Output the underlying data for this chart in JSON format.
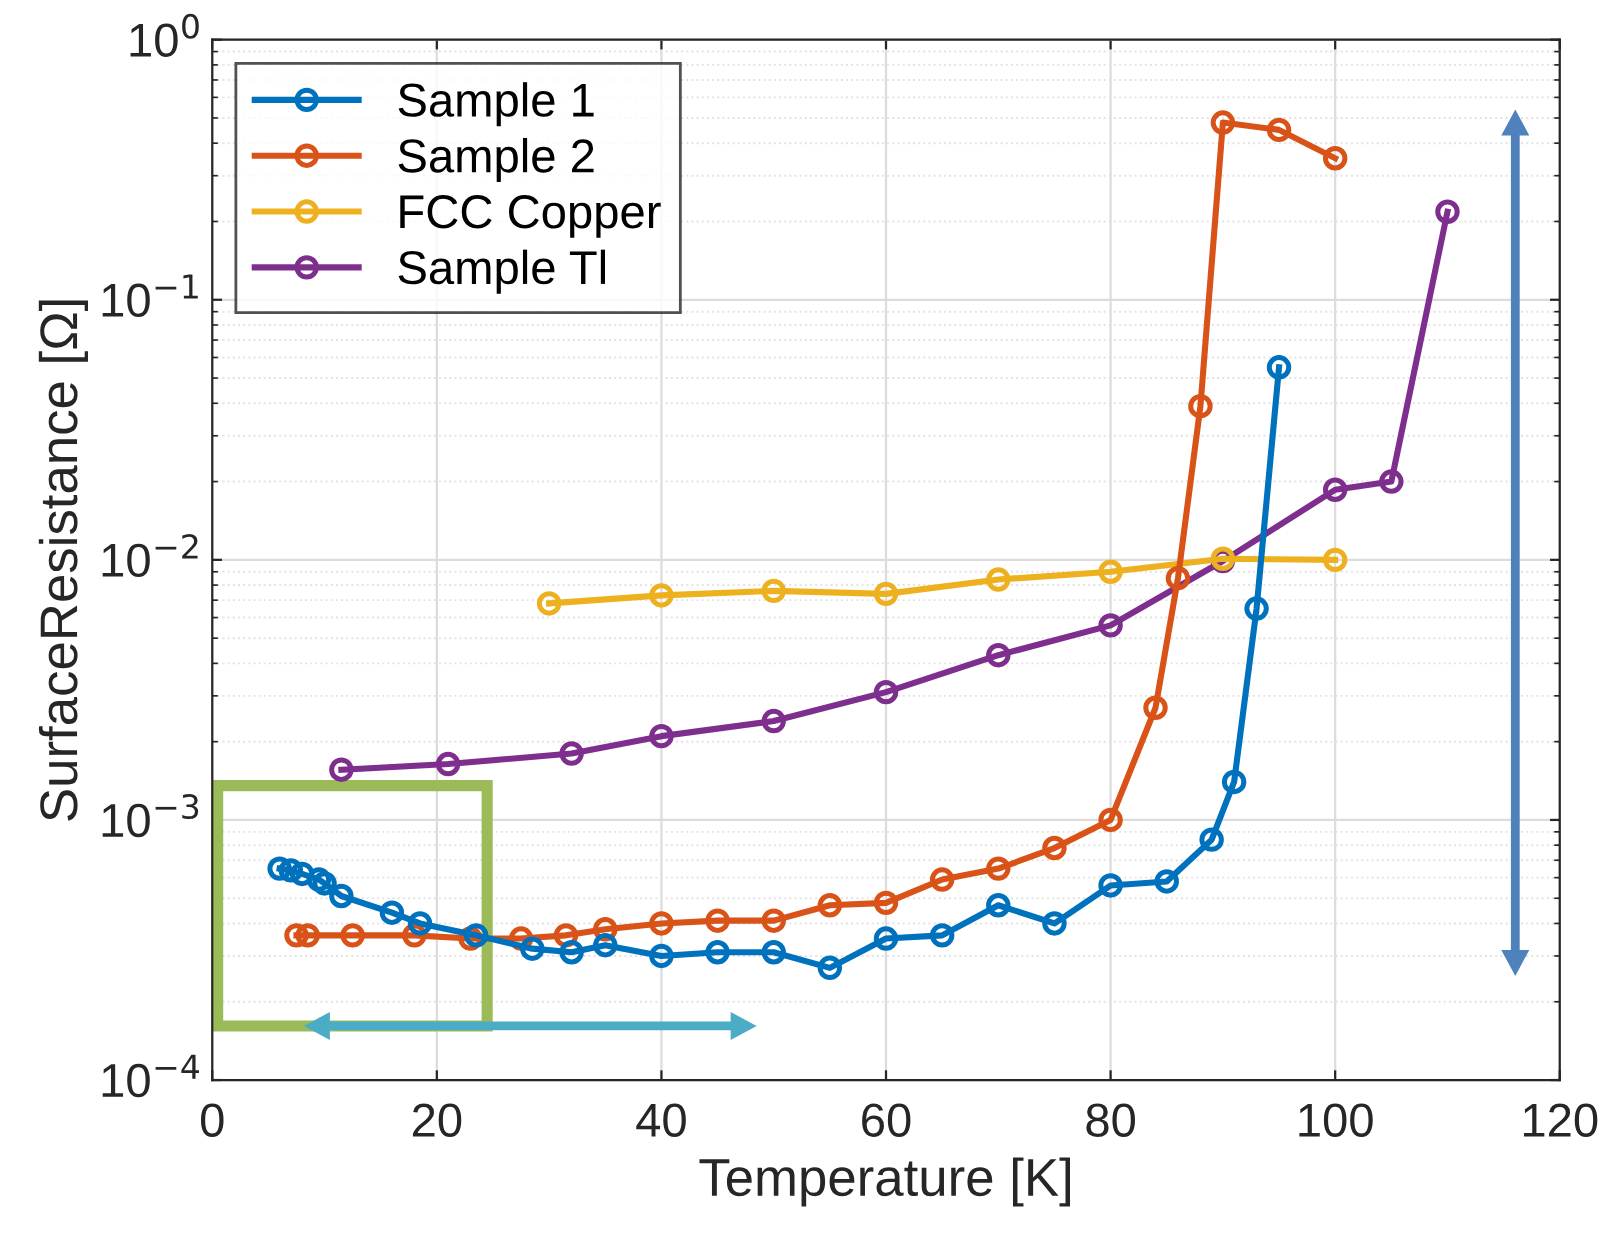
{
  "chart_data": {
    "type": "line",
    "xlabel": "Temperature [K]",
    "ylabel": "SurfaceResistance [Ω]",
    "log": "y",
    "xlim": [
      0,
      120
    ],
    "xticks": [
      0,
      20,
      40,
      60,
      80,
      100,
      120
    ],
    "ylim": [
      0.0001,
      1
    ],
    "yticks": [
      {
        "value": 0.0001,
        "label": "10$^{−4}$"
      },
      {
        "value": 0.001,
        "label": "10$^{−3}$"
      },
      {
        "value": 0.01,
        "label": "10$^{−2}$"
      },
      {
        "value": 0.1,
        "label": "10$^{−1}$"
      },
      {
        "value": 1,
        "label": "10$^{0}$"
      }
    ],
    "grid": true,
    "legend": "top left",
    "marker": "circle",
    "line_style": "solid",
    "series": [
      {
        "name": "Sample 1",
        "color": "#0072bd",
        "x": [
          6,
          7,
          8,
          9.5,
          10,
          11.5,
          16,
          18.5,
          23.5,
          28.5,
          32,
          35,
          40,
          45,
          50,
          55,
          60,
          65,
          70,
          75,
          80,
          85,
          89,
          91,
          93,
          95
        ],
        "values": [
          0.00065,
          0.00064,
          0.00062,
          0.00059,
          0.00057,
          0.00051,
          0.00044,
          0.0004,
          0.00036,
          0.00032,
          0.00031,
          0.00033,
          0.0003,
          0.00031,
          0.00031,
          0.00027,
          0.00035,
          0.00036,
          0.00047,
          0.0004,
          0.00056,
          0.00058,
          0.00084,
          0.0014,
          0.0065,
          0.055
        ]
      },
      {
        "name": "Sample 2",
        "color": "#d95319",
        "x": [
          7.5,
          8.5,
          12.5,
          18,
          23,
          27.5,
          31.5,
          35,
          40,
          45,
          50,
          55,
          60,
          65,
          70,
          75,
          80,
          84,
          86,
          88,
          90,
          95,
          100
        ],
        "values": [
          0.00036,
          0.00036,
          0.00036,
          0.00036,
          0.00035,
          0.00035,
          0.00036,
          0.00038,
          0.0004,
          0.00041,
          0.00041,
          0.00047,
          0.00048,
          0.00059,
          0.00065,
          0.00078,
          0.001,
          0.0027,
          0.0085,
          0.039,
          0.48,
          0.45,
          0.35
        ]
      },
      {
        "name": "FCC Copper",
        "color": "#edb120",
        "x": [
          30,
          40,
          50,
          60,
          70,
          80,
          90,
          100
        ],
        "values": [
          0.0068,
          0.0073,
          0.0076,
          0.0074,
          0.0084,
          0.009,
          0.0101,
          0.01
        ]
      },
      {
        "name": "Sample Tl",
        "color": "#7e2f8e",
        "x": [
          11.5,
          21,
          32,
          40,
          50,
          60,
          70,
          80,
          90,
          100,
          105,
          110
        ],
        "values": [
          0.00156,
          0.00164,
          0.0018,
          0.0021,
          0.0024,
          0.0031,
          0.0043,
          0.0056,
          0.0099,
          0.0186,
          0.02,
          0.218
        ]
      }
    ]
  }
}
